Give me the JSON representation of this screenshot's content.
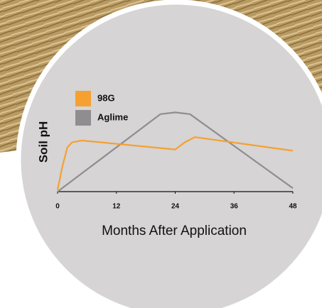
{
  "chart_data": {
    "type": "line",
    "y_label": "Soil pH",
    "x_label": "Months After Application",
    "xlim": [
      0,
      48
    ],
    "xticks": [
      0,
      12,
      24,
      36,
      48
    ],
    "ylim": [
      0,
      10
    ],
    "series": [
      {
        "name": "98G",
        "color": "#f5a031",
        "x": [
          0,
          1,
          2,
          3,
          5,
          23,
          24,
          26,
          28,
          48
        ],
        "values": [
          0.2,
          3,
          5.2,
          5.8,
          6.0,
          5.0,
          4.95,
          5.8,
          6.4,
          4.8
        ]
      },
      {
        "name": "Aglime",
        "color": "#8e8e90",
        "x": [
          0,
          21,
          24,
          27,
          48
        ],
        "values": [
          0,
          9.1,
          9.3,
          9.1,
          0.4
        ]
      }
    ]
  }
}
